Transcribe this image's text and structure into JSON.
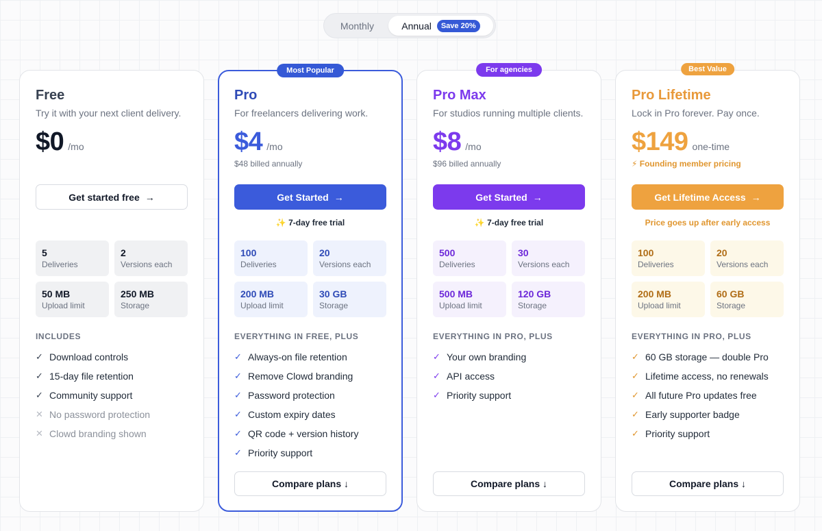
{
  "toggle": {
    "monthly": "Monthly",
    "annual": "Annual",
    "save_badge": "Save 20%"
  },
  "colors": {
    "pro": "#3b5bdb",
    "pro_max": "#7c3aed",
    "lifetime": "#eea23f",
    "free": "#6b7280"
  },
  "plans": [
    {
      "name": "Free",
      "ribbon": "",
      "description": "Try it with your next client delivery.",
      "price": "$0",
      "price_unit": "/mo",
      "price_note": "",
      "cta": "Get started free",
      "cta_icon": "arrow-right-icon",
      "subnote": "",
      "stats": [
        {
          "num": "5",
          "label": "Deliveries"
        },
        {
          "num": "2",
          "label": "Versions each"
        },
        {
          "num": "50 MB",
          "label": "Upload limit"
        },
        {
          "num": "250 MB",
          "label": "Storage"
        }
      ],
      "includes_title": "INCLUDES",
      "features": [
        {
          "text": "Download controls",
          "included": true
        },
        {
          "text": "15-day file retention",
          "included": true
        },
        {
          "text": "Community support",
          "included": true
        },
        {
          "text": "No password protection",
          "included": false
        },
        {
          "text": "Clowd branding shown",
          "included": false
        }
      ],
      "compare": ""
    },
    {
      "name": "Pro",
      "ribbon": "Most Popular",
      "description": "For freelancers delivering work.",
      "price": "$4",
      "price_unit": "/mo",
      "price_note": "$48 billed annually",
      "cta": "Get Started",
      "cta_icon": "arrow-right-icon",
      "subnote": "✨ 7-day free trial",
      "stats": [
        {
          "num": "100",
          "label": "Deliveries"
        },
        {
          "num": "20",
          "label": "Versions each"
        },
        {
          "num": "200 MB",
          "label": "Upload limit"
        },
        {
          "num": "30 GB",
          "label": "Storage"
        }
      ],
      "includes_title": "EVERYTHING IN FREE, PLUS",
      "features": [
        {
          "text": "Always-on file retention",
          "included": true
        },
        {
          "text": "Remove Clowd branding",
          "included": true
        },
        {
          "text": "Password protection",
          "included": true
        },
        {
          "text": "Custom expiry dates",
          "included": true
        },
        {
          "text": "QR code + version history",
          "included": true
        },
        {
          "text": "Priority support",
          "included": true
        }
      ],
      "compare": "Compare plans ↓"
    },
    {
      "name": "Pro Max",
      "ribbon": "For agencies",
      "description": "For studios running multiple clients.",
      "price": "$8",
      "price_unit": "/mo",
      "price_note": "$96 billed annually",
      "cta": "Get Started",
      "cta_icon": "arrow-right-icon",
      "subnote": "✨ 7-day free trial",
      "stats": [
        {
          "num": "500",
          "label": "Deliveries"
        },
        {
          "num": "30",
          "label": "Versions each"
        },
        {
          "num": "500 MB",
          "label": "Upload limit"
        },
        {
          "num": "120 GB",
          "label": "Storage"
        }
      ],
      "includes_title": "EVERYTHING IN PRO, PLUS",
      "features": [
        {
          "text": "Your own branding",
          "included": true
        },
        {
          "text": "API access",
          "included": true
        },
        {
          "text": "Priority support",
          "included": true
        }
      ],
      "compare": "Compare plans ↓"
    },
    {
      "name": "Pro Lifetime",
      "ribbon": "Best Value",
      "description": "Lock in Pro forever. Pay once.",
      "price": "$149",
      "price_unit": "one-time",
      "price_note": "⚡ Founding member pricing",
      "cta": "Get Lifetime Access",
      "cta_icon": "arrow-right-icon",
      "subnote": "Price goes up after early access",
      "stats": [
        {
          "num": "100",
          "label": "Deliveries"
        },
        {
          "num": "20",
          "label": "Versions each"
        },
        {
          "num": "200 MB",
          "label": "Upload limit"
        },
        {
          "num": "60 GB",
          "label": "Storage"
        }
      ],
      "includes_title": "EVERYTHING IN PRO, PLUS",
      "features": [
        {
          "text": "60 GB storage — double Pro",
          "included": true
        },
        {
          "text": "Lifetime access, no renewals",
          "included": true
        },
        {
          "text": "All future Pro updates free",
          "included": true
        },
        {
          "text": "Early supporter badge",
          "included": true
        },
        {
          "text": "Priority support",
          "included": true
        }
      ],
      "compare": "Compare plans ↓"
    }
  ]
}
